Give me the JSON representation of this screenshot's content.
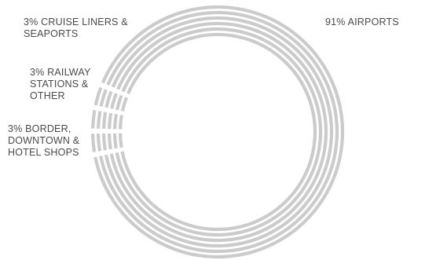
{
  "chart_data": {
    "type": "pie",
    "style": "concentric ring donut",
    "colors": {
      "ring": "#cbcbcb",
      "label_text": "#4a4a4a",
      "background": "#ffffff"
    },
    "slices": [
      {
        "label_lines": [
          "91% AIRPORTS"
        ],
        "value": 91
      },
      {
        "label_lines": [
          "3% CRUISE LINERS &",
          "SEAPORTS"
        ],
        "value": 3
      },
      {
        "label_lines": [
          "3% RAILWAY",
          "STATIONS &",
          "OTHER"
        ],
        "value": 3
      },
      {
        "label_lines": [
          "3% BORDER,",
          "DOWNTOWN &",
          "HOTEL SHOPS"
        ],
        "value": 3
      }
    ]
  }
}
